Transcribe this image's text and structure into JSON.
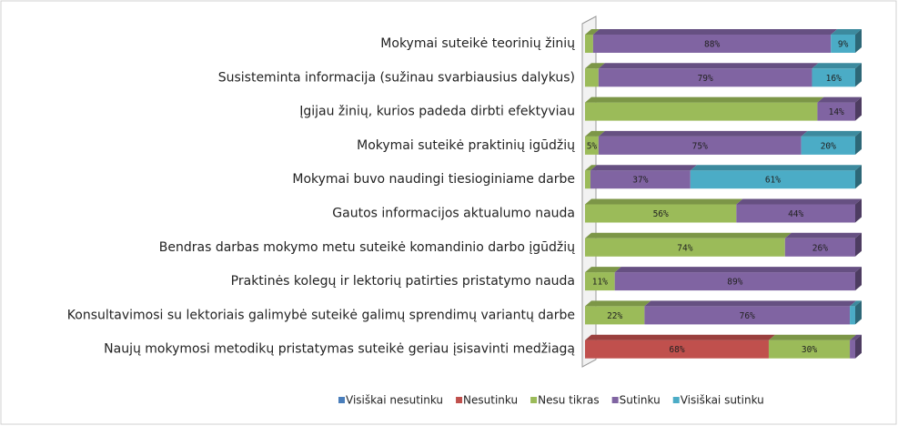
{
  "chart_data": {
    "type": "stacked-bar-3d",
    "categories": [
      "Mokymai suteikė teorinių žinių",
      "Susisteminta informacija (sužinau svarbiausius dalykus)",
      "Įgijau žinių, kurios padeda dirbti efektyviau",
      "Mokymai suteikė praktinių igūdžių",
      "Mokymai buvo naudingi tiesioginiame darbe",
      "Gautos informacijos aktualumo nauda",
      "Bendras darbas mokymo metu suteikė komandinio darbo įgūdžių",
      "Praktinės kolegų ir lektorių patirties pristatymo nauda",
      "Konsultavimosi su lektoriais galimybė suteikė galimų sprendimų variantų darbe",
      "Naujų mokymosi metodikų pristatymas suteikė geriau įsisavinti medžiagą"
    ],
    "xlim": [
      0,
      100
    ],
    "series": [
      {
        "name": "Visiškai nesutinku",
        "color": "#4a7ebb",
        "values": [
          0,
          0,
          0,
          0,
          0,
          0,
          0,
          0,
          0,
          0
        ],
        "value_labels": [
          null,
          null,
          null,
          null,
          null,
          null,
          null,
          null,
          null,
          null
        ]
      },
      {
        "name": "Nesutinku",
        "color": "#c0504d",
        "values": [
          0,
          0,
          0,
          0,
          0,
          0,
          0,
          0,
          0,
          68
        ],
        "value_labels": [
          null,
          null,
          null,
          null,
          null,
          null,
          null,
          null,
          null,
          "68%"
        ]
      },
      {
        "name": "Nesu tikras",
        "color": "#9bbb59",
        "values": [
          3,
          5,
          86,
          5,
          2,
          56,
          74,
          11,
          22,
          30
        ],
        "value_labels": [
          null,
          null,
          null,
          "5%",
          null,
          "56%",
          "74%",
          "11%",
          "22%",
          "30%"
        ]
      },
      {
        "name": "Sutinku",
        "color": "#8064a2",
        "values": [
          88,
          79,
          14,
          75,
          37,
          44,
          26,
          89,
          76,
          2
        ],
        "value_labels": [
          "88%",
          "79%",
          "14%",
          "75%",
          "37%",
          "44%",
          "26%",
          "89%",
          "76%",
          null
        ]
      },
      {
        "name": "Visiškai sutinku",
        "color": "#4bacc6",
        "values": [
          9,
          16,
          0,
          20,
          61,
          0,
          0,
          0,
          2,
          0
        ],
        "value_labels": [
          "9%",
          "16%",
          null,
          "20%",
          "61%",
          null,
          null,
          null,
          null,
          null
        ]
      }
    ],
    "legend": "bottom"
  }
}
